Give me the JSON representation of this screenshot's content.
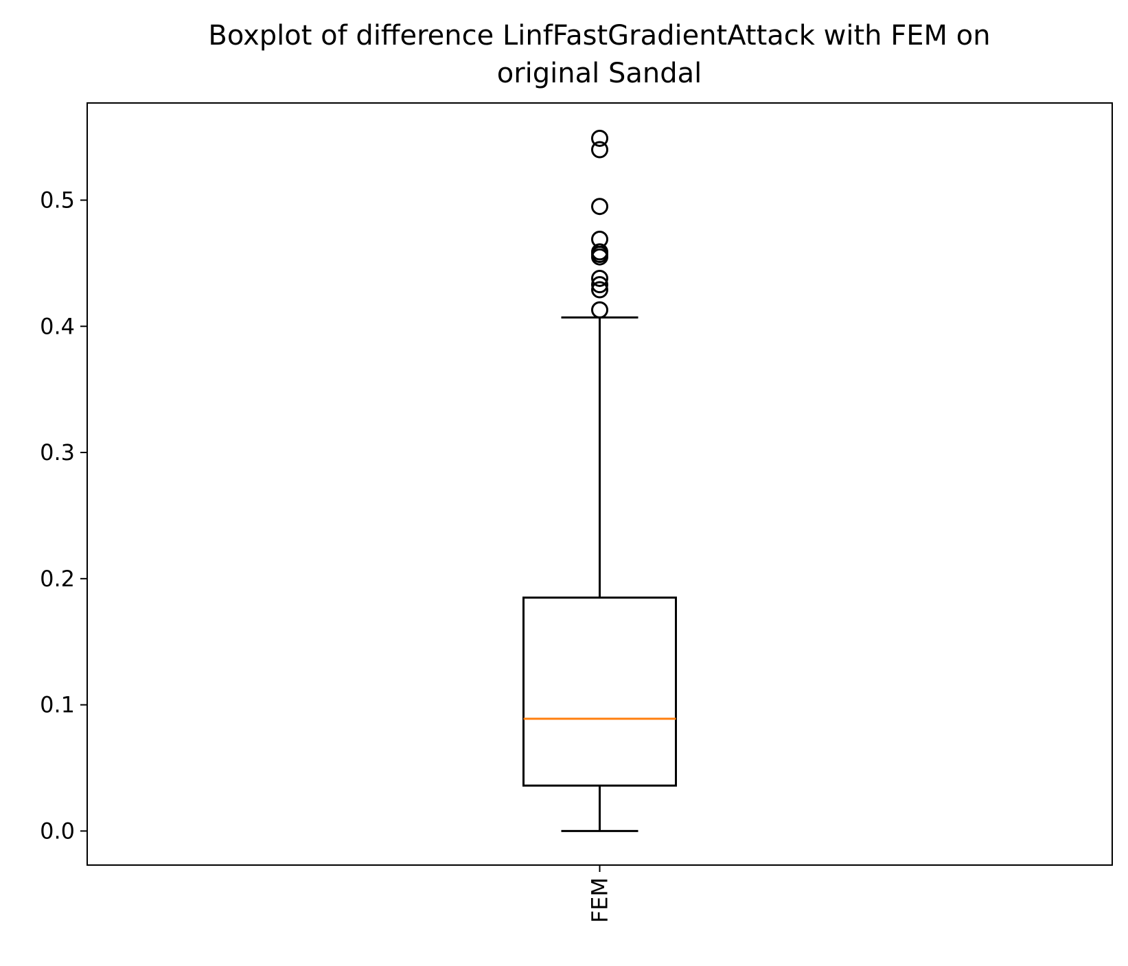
{
  "chart_data": {
    "type": "box",
    "title": [
      "Boxplot of difference LinfFastGradientAttack with FEM on",
      "original Sandal"
    ],
    "xlabel": "",
    "ylabel": "",
    "ylim": [
      -0.027,
      0.577
    ],
    "yticks": [
      0.0,
      0.1,
      0.2,
      0.3,
      0.4,
      0.5
    ],
    "ytick_labels": [
      "0.0",
      "0.1",
      "0.2",
      "0.3",
      "0.4",
      "0.5"
    ],
    "categories": [
      "FEM"
    ],
    "xtick_rotation": "vertical",
    "grid": false,
    "legend": "none",
    "colors": {
      "box": "#000000",
      "whisker": "#000000",
      "median": "#ff7f0e",
      "flier": "#000000",
      "axes": "#000000",
      "background": "#ffffff"
    },
    "boxes": [
      {
        "name": "FEM",
        "whislo": 0.0,
        "q1": 0.036,
        "median": 0.089,
        "q3": 0.185,
        "whishi": 0.407,
        "fliers": [
          0.413,
          0.429,
          0.433,
          0.438,
          0.455,
          0.457,
          0.459,
          0.469,
          0.495,
          0.54,
          0.549
        ]
      }
    ]
  }
}
